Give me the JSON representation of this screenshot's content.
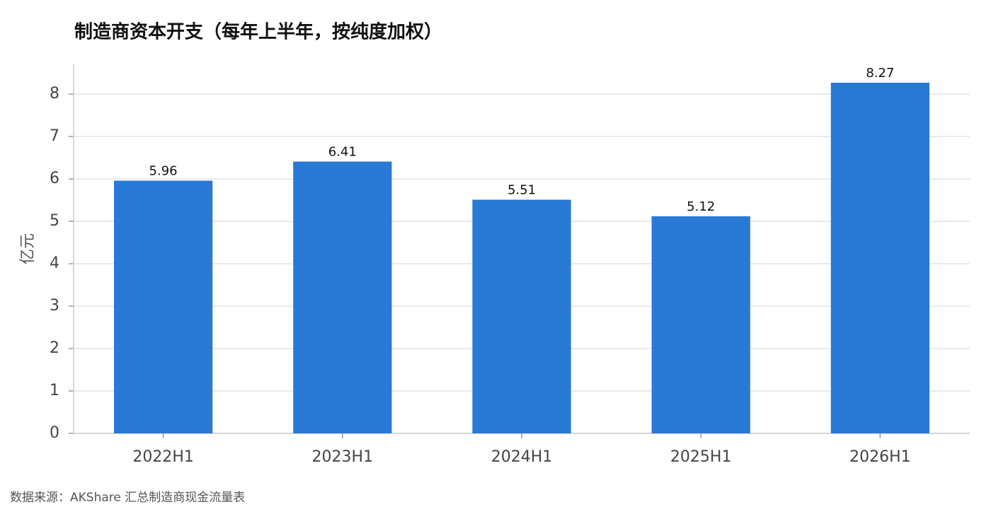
{
  "chart_data": {
    "type": "bar",
    "title": "制造商资本开支（每年上半年，按纯度加权）",
    "y_label": "亿元",
    "categories": [
      "2022H1",
      "2023H1",
      "2024H1",
      "2025H1",
      "2026H1"
    ],
    "values": [
      5.96,
      6.41,
      5.51,
      5.12,
      8.27
    ],
    "color": "#2979d6",
    "ylim": [
      0,
      8.72
    ],
    "yticks": [
      0,
      1,
      2,
      3,
      4,
      5,
      6,
      7,
      8
    ],
    "grid": true,
    "source": "数据来源：AKShare 汇总制造商现金流量表"
  }
}
